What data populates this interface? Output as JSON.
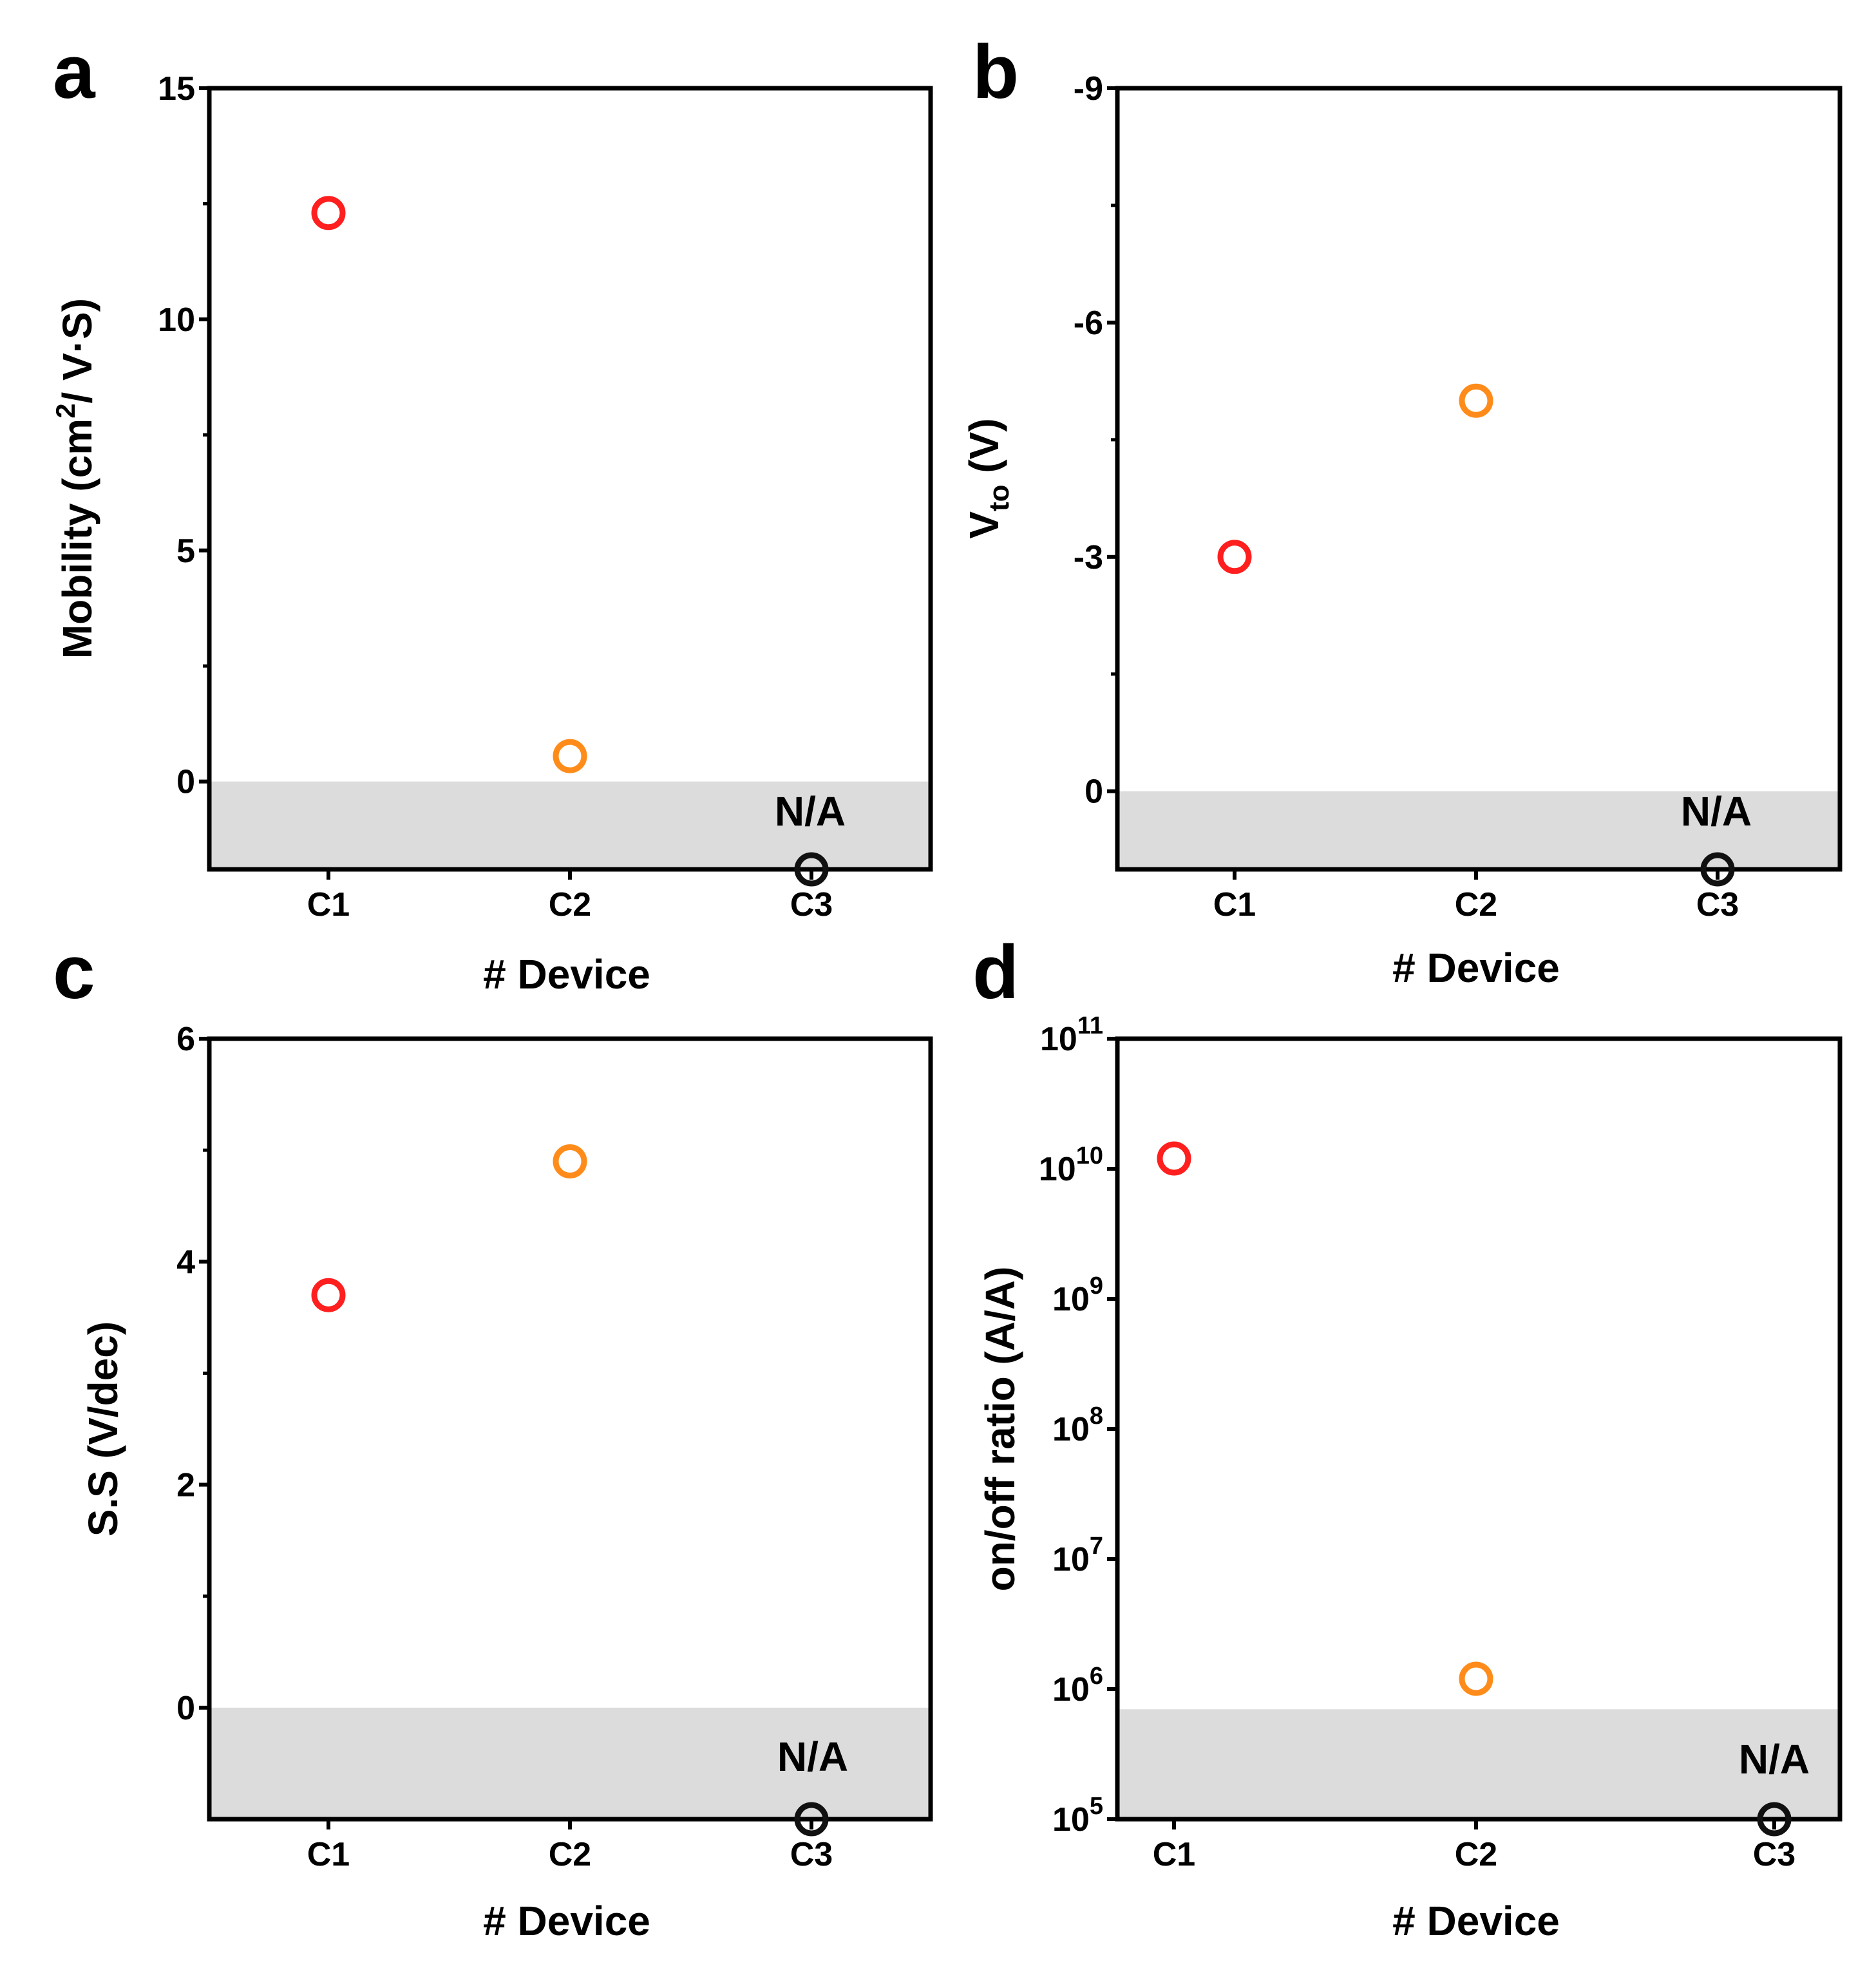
{
  "figure": {
    "colors": {
      "c1": "#ff1f1f",
      "c2": "#ff8c1a",
      "c3": "#111111",
      "na_shade": "#dcdcdc",
      "axis": "#000000"
    }
  },
  "chart_data": [
    {
      "panel": "a",
      "type": "scatter",
      "scale": "linear",
      "title": "",
      "xlabel": "# Device",
      "ylabel": "Mobility (cm2/ V·S)",
      "ylabel_parts": {
        "pre": "Mobility (cm",
        "sup": "2",
        "post": "/ V·S)"
      },
      "categories": [
        "C1",
        "C2",
        "C3"
      ],
      "values": [
        12.3,
        0.55,
        null
      ],
      "colors": [
        "#ff1f1f",
        "#ff8c1a",
        "#111111"
      ],
      "ylim": [
        -1.9,
        15
      ],
      "yticks": [
        0,
        5,
        10,
        15
      ],
      "yticklabels": [
        "0",
        "5",
        "10",
        "15"
      ],
      "reversed": false,
      "na_region_top": 0,
      "na_label": "N/A"
    },
    {
      "panel": "b",
      "type": "scatter",
      "scale": "linear",
      "title": "",
      "xlabel": "# Device",
      "ylabel": "Vto (V)",
      "ylabel_parts": {
        "pre": "V",
        "sub": "to",
        "post": " (V)"
      },
      "categories": [
        "C1",
        "C2",
        "C3"
      ],
      "values": [
        -3.0,
        -5.0,
        null
      ],
      "colors": [
        "#ff1f1f",
        "#ff8c1a",
        "#111111"
      ],
      "ylim": [
        1.0,
        -9
      ],
      "yticks": [
        0,
        -3,
        -6,
        -9
      ],
      "yticklabels": [
        "0",
        "-3",
        "-6",
        "-9"
      ],
      "reversed": true,
      "na_region_top": 0,
      "na_label": "N/A"
    },
    {
      "panel": "c",
      "type": "scatter",
      "scale": "linear",
      "title": "",
      "xlabel": "# Device",
      "ylabel": "S.S (V/dec)",
      "categories": [
        "C1",
        "C2",
        "C3"
      ],
      "values": [
        3.7,
        4.9,
        null
      ],
      "colors": [
        "#ff1f1f",
        "#ff8c1a",
        "#111111"
      ],
      "ylim": [
        -1.0,
        6
      ],
      "yticks": [
        0,
        2,
        4,
        6
      ],
      "yticklabels": [
        "0",
        "2",
        "4",
        "6"
      ],
      "reversed": false,
      "na_region_top": 0,
      "na_label": "N/A"
    },
    {
      "panel": "d",
      "type": "scatter",
      "scale": "log",
      "title": "",
      "xlabel": "# Device",
      "ylabel": "on/off ratio (A/A)",
      "categories": [
        "C1",
        "C2",
        "C3"
      ],
      "values": [
        12000000000,
        1200000,
        null
      ],
      "colors": [
        "#ff1f1f",
        "#ff8c1a",
        "#111111"
      ],
      "ylim": [
        100000,
        100000000000
      ],
      "yticks": [
        100000,
        1000000,
        10000000,
        100000000,
        1000000000,
        10000000000,
        100000000000
      ],
      "ytick_base": "10",
      "ytick_exponents": [
        "5",
        "6",
        "7",
        "8",
        "9",
        "10",
        "11"
      ],
      "reversed": false,
      "na_region_top": 700000,
      "na_label": "N/A"
    }
  ]
}
